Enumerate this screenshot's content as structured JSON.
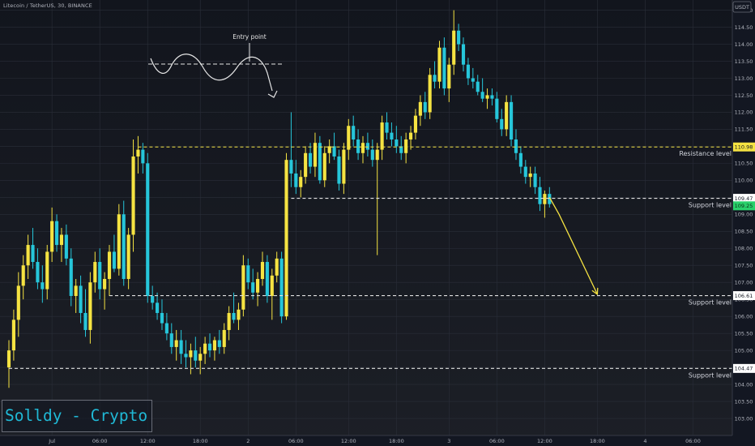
{
  "header": {
    "symbol_line": "Litecoin / TetherUS, 30, BINANCE"
  },
  "currency_badge": "USDT",
  "watermark": "Solldy - Crypto for U",
  "chart_data": {
    "type": "candlestick",
    "title": "Litecoin / TetherUS, 30, BINANCE",
    "y_range": [
      102.5,
      115.3
    ],
    "y_ticks": [
      "103.00",
      "103.50",
      "104.00",
      "104.50",
      "105.00",
      "105.50",
      "106.00",
      "106.50",
      "107.00",
      "107.50",
      "108.00",
      "108.50",
      "109.00",
      "109.50",
      "110.00",
      "110.50",
      "111.00",
      "111.50",
      "112.00",
      "112.50",
      "113.00",
      "113.50",
      "114.00",
      "114.50",
      "115.00"
    ],
    "x_range": [
      0,
      148
    ],
    "x_ticks": [
      {
        "label": "Jul",
        "i": 9
      },
      {
        "label": "06:00",
        "i": 19
      },
      {
        "label": "12:00",
        "i": 29
      },
      {
        "label": "18:00",
        "i": 40
      },
      {
        "label": "2",
        "i": 50
      },
      {
        "label": "06:00",
        "i": 60
      },
      {
        "label": "12:00",
        "i": 71
      },
      {
        "label": "18:00",
        "i": 81
      },
      {
        "label": "3",
        "i": 92
      },
      {
        "label": "06:00",
        "i": 102
      },
      {
        "label": "12:00",
        "i": 112
      },
      {
        "label": "18:00",
        "i": 123
      },
      {
        "label": "4",
        "i": 133
      },
      {
        "label": "06:00",
        "i": 143
      }
    ],
    "bull_color": "#f5e342",
    "bear_color": "#26c6da",
    "candles": [
      [
        104.5,
        105.3,
        103.9,
        105.0
      ],
      [
        105.0,
        106.2,
        104.7,
        105.9
      ],
      [
        105.9,
        107.3,
        105.4,
        106.9
      ],
      [
        106.9,
        107.8,
        106.5,
        107.5
      ],
      [
        107.5,
        108.4,
        107.1,
        108.1
      ],
      [
        108.1,
        108.6,
        107.4,
        107.6
      ],
      [
        107.6,
        108.0,
        106.8,
        107.0
      ],
      [
        107.0,
        107.5,
        106.4,
        106.8
      ],
      [
        106.8,
        108.1,
        106.5,
        107.9
      ],
      [
        107.9,
        109.2,
        107.6,
        108.8
      ],
      [
        108.8,
        109.0,
        107.9,
        108.1
      ],
      [
        108.1,
        108.6,
        107.6,
        108.4
      ],
      [
        108.4,
        108.7,
        107.5,
        107.7
      ],
      [
        107.7,
        108.0,
        106.3,
        106.6
      ],
      [
        106.6,
        107.1,
        106.1,
        106.9
      ],
      [
        106.9,
        107.2,
        105.8,
        106.1
      ],
      [
        106.1,
        106.8,
        105.4,
        105.6
      ],
      [
        105.6,
        107.3,
        105.2,
        107.0
      ],
      [
        107.0,
        107.9,
        106.7,
        107.6
      ],
      [
        107.6,
        108.0,
        106.5,
        106.8
      ],
      [
        106.8,
        107.3,
        106.2,
        107.1
      ],
      [
        107.1,
        108.1,
        106.6,
        107.9
      ],
      [
        107.9,
        108.4,
        107.3,
        107.4
      ],
      [
        107.4,
        109.3,
        107.2,
        109.0
      ],
      [
        109.0,
        109.4,
        106.9,
        107.1
      ],
      [
        107.1,
        108.6,
        106.8,
        108.4
      ],
      [
        108.4,
        111.2,
        107.9,
        110.7
      ],
      [
        110.7,
        111.3,
        110.2,
        110.9
      ],
      [
        110.9,
        111.1,
        110.2,
        110.5
      ],
      [
        110.5,
        110.8,
        106.4,
        106.6
      ],
      [
        106.6,
        106.9,
        106.2,
        106.4
      ],
      [
        106.4,
        106.7,
        105.9,
        106.1
      ],
      [
        106.1,
        106.5,
        105.6,
        105.8
      ],
      [
        105.8,
        106.1,
        105.3,
        105.5
      ],
      [
        105.5,
        105.8,
        104.9,
        105.1
      ],
      [
        105.1,
        105.6,
        104.7,
        105.3
      ],
      [
        105.3,
        105.6,
        104.6,
        104.9
      ],
      [
        104.9,
        105.3,
        104.5,
        104.8
      ],
      [
        104.8,
        105.2,
        104.3,
        105.0
      ],
      [
        105.0,
        105.4,
        104.5,
        104.7
      ],
      [
        104.7,
        105.1,
        104.3,
        104.9
      ],
      [
        104.9,
        105.4,
        104.6,
        105.2
      ],
      [
        105.2,
        105.5,
        104.8,
        105.0
      ],
      [
        105.0,
        105.4,
        104.7,
        105.3
      ],
      [
        105.3,
        105.6,
        104.9,
        105.1
      ],
      [
        105.1,
        105.8,
        104.9,
        105.6
      ],
      [
        105.6,
        106.3,
        105.3,
        106.1
      ],
      [
        106.1,
        106.7,
        105.8,
        105.9
      ],
      [
        105.9,
        106.4,
        105.6,
        106.2
      ],
      [
        106.2,
        107.8,
        106.0,
        107.5
      ],
      [
        107.5,
        107.7,
        106.8,
        107.0
      ],
      [
        107.0,
        107.4,
        106.5,
        106.7
      ],
      [
        106.7,
        107.3,
        106.3,
        107.1
      ],
      [
        107.1,
        107.9,
        106.9,
        107.6
      ],
      [
        107.6,
        107.8,
        106.4,
        106.6
      ],
      [
        106.6,
        107.4,
        105.9,
        107.2
      ],
      [
        107.2,
        107.9,
        107.0,
        107.7
      ],
      [
        107.7,
        107.9,
        105.8,
        106.0
      ],
      [
        106.0,
        110.8,
        105.9,
        110.6
      ],
      [
        110.6,
        112.0,
        109.8,
        110.2
      ],
      [
        110.2,
        110.6,
        109.6,
        109.8
      ],
      [
        109.8,
        110.3,
        109.5,
        110.1
      ],
      [
        110.1,
        111.0,
        109.9,
        110.8
      ],
      [
        110.8,
        111.1,
        110.2,
        110.4
      ],
      [
        110.4,
        111.4,
        110.1,
        111.1
      ],
      [
        111.1,
        111.3,
        109.9,
        110.0
      ],
      [
        110.0,
        111.0,
        109.8,
        110.8
      ],
      [
        110.8,
        111.2,
        110.5,
        111.0
      ],
      [
        111.0,
        111.4,
        110.6,
        110.7
      ],
      [
        110.7,
        110.9,
        109.7,
        109.9
      ],
      [
        109.9,
        111.1,
        109.6,
        110.9
      ],
      [
        110.9,
        111.8,
        110.6,
        111.6
      ],
      [
        111.6,
        111.9,
        111.0,
        111.2
      ],
      [
        111.2,
        111.5,
        110.6,
        110.8
      ],
      [
        110.8,
        111.3,
        110.5,
        111.1
      ],
      [
        111.1,
        111.4,
        110.7,
        110.9
      ],
      [
        110.9,
        111.2,
        110.4,
        110.6
      ],
      [
        110.6,
        111.1,
        107.8,
        110.9
      ],
      [
        110.9,
        111.9,
        110.6,
        111.7
      ],
      [
        111.7,
        112.0,
        111.2,
        111.4
      ],
      [
        111.4,
        111.7,
        111.0,
        111.2
      ],
      [
        111.2,
        111.6,
        110.8,
        111.0
      ],
      [
        111.0,
        111.3,
        110.6,
        110.8
      ],
      [
        110.8,
        111.4,
        110.5,
        111.2
      ],
      [
        111.2,
        111.6,
        110.9,
        111.4
      ],
      [
        111.4,
        112.1,
        111.2,
        111.9
      ],
      [
        111.9,
        112.5,
        111.6,
        112.3
      ],
      [
        112.3,
        112.6,
        111.8,
        112.0
      ],
      [
        112.0,
        113.3,
        111.8,
        113.1
      ],
      [
        113.1,
        113.5,
        112.7,
        112.9
      ],
      [
        112.9,
        114.1,
        112.7,
        113.9
      ],
      [
        113.9,
        114.2,
        112.5,
        112.7
      ],
      [
        112.7,
        113.6,
        112.3,
        113.4
      ],
      [
        113.4,
        115.0,
        113.1,
        114.4
      ],
      [
        114.4,
        114.6,
        113.8,
        114.0
      ],
      [
        114.0,
        114.2,
        113.2,
        113.4
      ],
      [
        113.4,
        113.6,
        112.8,
        113.0
      ],
      [
        113.0,
        113.3,
        112.7,
        112.9
      ],
      [
        112.9,
        113.1,
        112.5,
        112.6
      ],
      [
        112.6,
        113.0,
        112.3,
        112.4
      ],
      [
        112.4,
        112.7,
        112.1,
        112.5
      ],
      [
        112.5,
        112.7,
        112.2,
        112.4
      ],
      [
        112.4,
        112.6,
        111.7,
        111.8
      ],
      [
        111.8,
        112.1,
        111.3,
        111.5
      ],
      [
        111.5,
        112.5,
        111.3,
        112.3
      ],
      [
        112.3,
        112.5,
        111.0,
        111.2
      ],
      [
        111.2,
        111.5,
        110.6,
        110.8
      ],
      [
        110.8,
        111.0,
        110.2,
        110.4
      ],
      [
        110.4,
        110.6,
        109.9,
        110.1
      ],
      [
        110.1,
        110.4,
        109.8,
        110.2
      ],
      [
        110.2,
        110.4,
        109.6,
        109.8
      ],
      [
        109.8,
        110.1,
        109.1,
        109.3
      ],
      [
        109.3,
        109.7,
        108.9,
        109.6
      ],
      [
        109.6,
        109.8,
        109.2,
        109.3
      ]
    ],
    "levels": [
      {
        "label": "Resistance level",
        "price": 110.98,
        "badge": "110.98",
        "style": "dashed",
        "color": "#f5e342"
      },
      {
        "label": "Support level",
        "price": 109.47,
        "badge": "109.47",
        "style": "dashed",
        "color": "#e0e0e0"
      },
      {
        "label": "Support level",
        "price": 106.61,
        "badge": "106.61",
        "style": "dashed",
        "color": "#e0e0e0"
      },
      {
        "label": "Support level",
        "price": 104.47,
        "badge": "104.47",
        "style": "dashed",
        "color": "#e0e0e0"
      }
    ],
    "current_price": {
      "value": "109.25",
      "color": "#29d06b"
    },
    "annotation": {
      "text": "Entry point"
    },
    "projection": [
      [
        113,
        109.5
      ],
      [
        115,
        109.0
      ],
      [
        123,
        106.65
      ]
    ]
  }
}
